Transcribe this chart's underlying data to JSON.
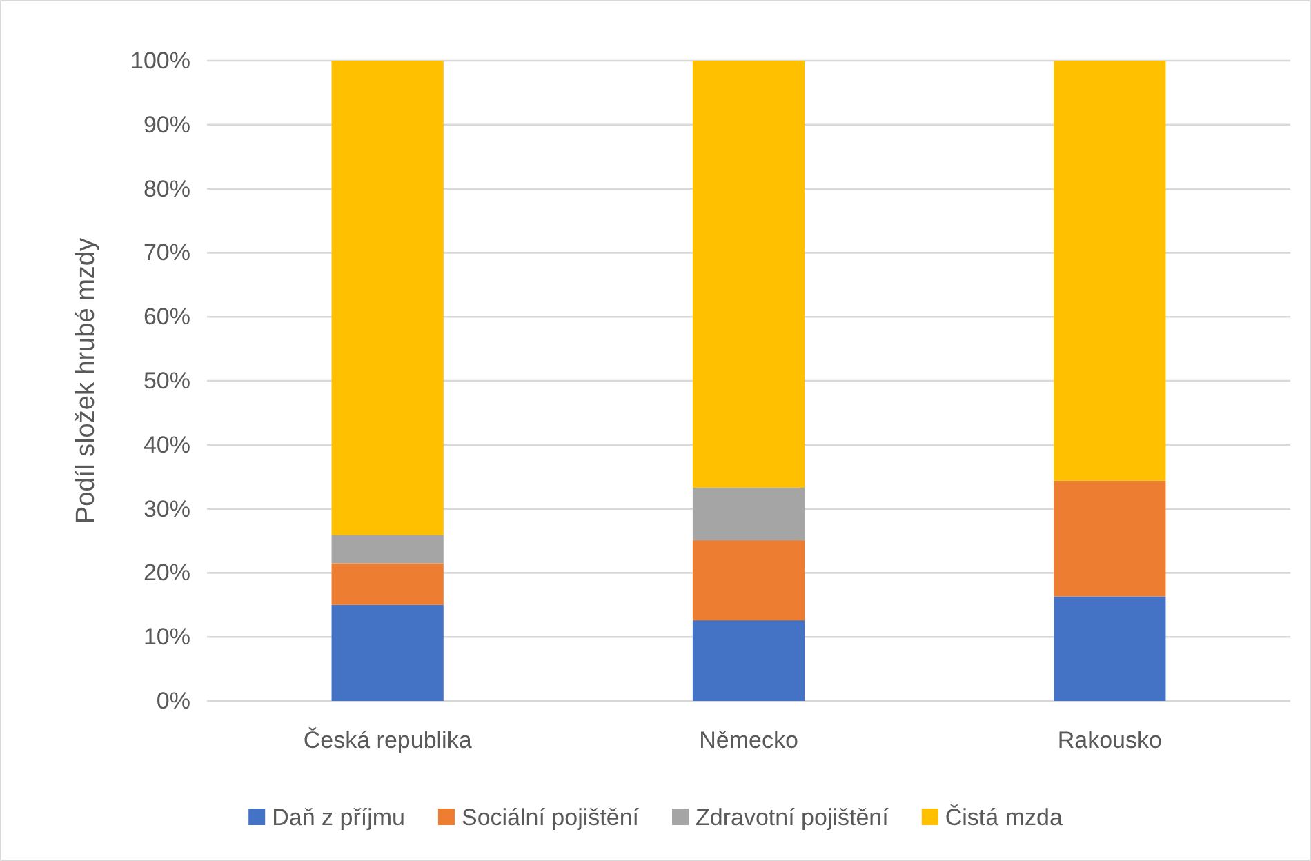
{
  "chart_data": {
    "type": "bar",
    "stacked": true,
    "ylabel": "Podíl složek hrubé mzdy",
    "categories": [
      "Česká republika",
      "Německo",
      "Rakousko"
    ],
    "series": [
      {
        "name": "Daň z příjmu",
        "color": "#4472c4",
        "values": [
          15.0,
          12.6,
          16.3
        ]
      },
      {
        "name": "Sociální pojištění",
        "color": "#ed7d31",
        "values": [
          6.5,
          12.5,
          18.1
        ]
      },
      {
        "name": "Zdravotní pojištění",
        "color": "#a5a5a5",
        "values": [
          4.4,
          8.2,
          0
        ]
      },
      {
        "name": "Čistá mzda",
        "color": "#ffc000",
        "values": [
          74.1,
          66.7,
          65.6
        ]
      }
    ],
    "ylim": [
      0,
      100
    ],
    "yticks": [
      {
        "value": 0,
        "label": "0%"
      },
      {
        "value": 10,
        "label": "10%"
      },
      {
        "value": 20,
        "label": "20%"
      },
      {
        "value": 30,
        "label": "30%"
      },
      {
        "value": 40,
        "label": "40%"
      },
      {
        "value": 50,
        "label": "50%"
      },
      {
        "value": 60,
        "label": "60%"
      },
      {
        "value": 70,
        "label": "70%"
      },
      {
        "value": 80,
        "label": "80%"
      },
      {
        "value": 90,
        "label": "90%"
      },
      {
        "value": 100,
        "label": "100%"
      }
    ],
    "grid": "y",
    "legend": "bottom"
  }
}
